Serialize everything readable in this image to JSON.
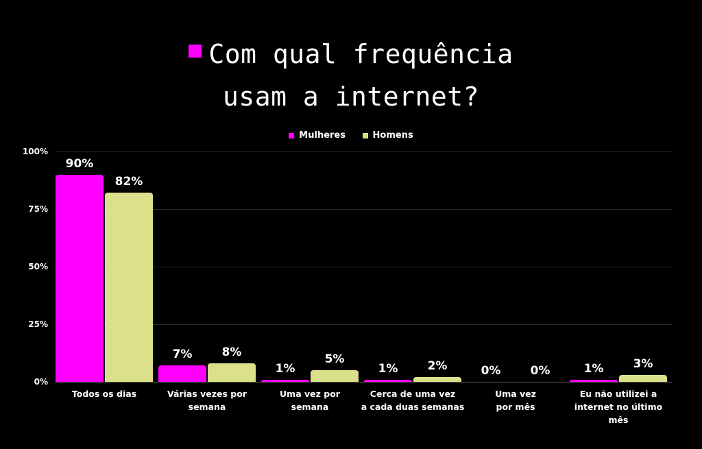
{
  "title": {
    "line1": "Com qual frequência",
    "line2": "usam a internet?",
    "marker_color": "#ff00ff"
  },
  "legend": [
    {
      "label": "Mulheres",
      "color": "#ff00ff"
    },
    {
      "label": "Homens",
      "color": "#dbe08a"
    }
  ],
  "y_axis": {
    "ticks": [
      "100%",
      "75%",
      "50%",
      "25%",
      "0%"
    ]
  },
  "categories": [
    {
      "label": "Todos os dias",
      "mulheres": "90%",
      "homens": "82%"
    },
    {
      "label": "Várias vezes por\nsemana",
      "mulheres": "7%",
      "homens": "8%"
    },
    {
      "label": "Uma vez por\nsemana",
      "mulheres": "1%",
      "homens": "5%"
    },
    {
      "label": "Cerca de uma vez\na cada duas semanas",
      "mulheres": "1%",
      "homens": "2%"
    },
    {
      "label": "Uma vez\npor mês",
      "mulheres": "0%",
      "homens": "0%"
    },
    {
      "label": "Eu não utilizei a\ninternet no último\nmês",
      "mulheres": "1%",
      "homens": "3%"
    }
  ],
  "chart_data": {
    "type": "bar",
    "title": "Com qual frequência usam a internet?",
    "categories": [
      "Todos os dias",
      "Várias vezes por semana",
      "Uma vez por semana",
      "Cerca de uma vez a cada duas semanas",
      "Uma vez por mês",
      "Eu não utilizei a internet no último mês"
    ],
    "series": [
      {
        "name": "Mulheres",
        "color": "#ff00ff",
        "values": [
          90,
          7,
          1,
          1,
          0,
          1
        ]
      },
      {
        "name": "Homens",
        "color": "#dbe08a",
        "values": [
          82,
          8,
          5,
          2,
          0,
          3
        ]
      }
    ],
    "xlabel": "",
    "ylabel": "",
    "ylim": [
      0,
      100
    ],
    "yticks": [
      "0%",
      "25%",
      "50%",
      "75%",
      "100%"
    ],
    "grid": true,
    "legend_position": "top",
    "data_labels": true,
    "background": "#000000"
  }
}
